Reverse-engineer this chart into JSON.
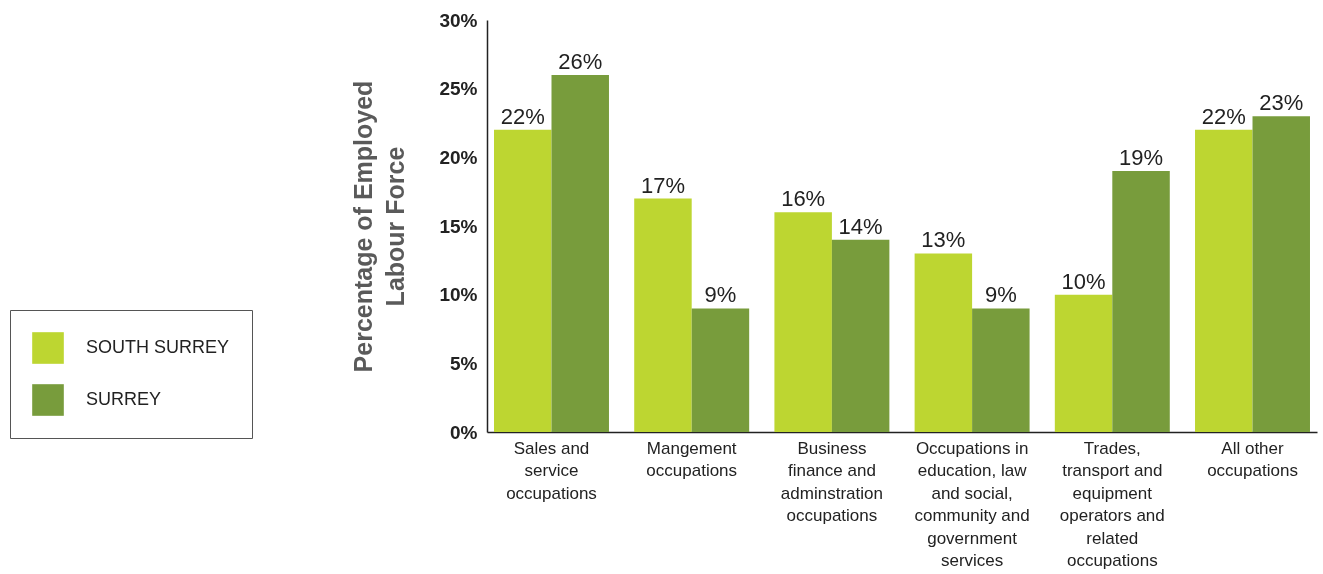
{
  "chart_data": {
    "type": "bar",
    "ylabel": "Percentage of Employed Labour Force",
    "categories": [
      "Sales and service occupations",
      "Mangement occupations",
      "Business finance and adminstration occupations",
      "Occupations in education, law and social, community and government services",
      "Trades, transport and equipment operators and related occupations",
      "All other occupations"
    ],
    "series": [
      {
        "name": "SOUTH SURREY",
        "color": "#bdd631",
        "values": [
          22,
          17,
          16,
          13,
          10,
          22
        ],
        "value_labels": [
          "22%",
          "17%",
          "16%",
          "13%",
          "10%",
          "22%"
        ]
      },
      {
        "name": "SURREY",
        "color": "#789c3c",
        "values": [
          26,
          9,
          14,
          9,
          19,
          23
        ],
        "value_labels": [
          "26%",
          "9%",
          "14%",
          "9%",
          "19%",
          "23%"
        ]
      }
    ],
    "ylim": [
      0,
      30
    ],
    "yticks": [
      {
        "value": 0,
        "label": "0%"
      },
      {
        "value": 5,
        "label": "5%"
      },
      {
        "value": 10,
        "label": "10%"
      },
      {
        "value": 15,
        "label": "15%"
      },
      {
        "value": 20,
        "label": "20%"
      },
      {
        "value": 25,
        "label": "25%"
      },
      {
        "value": 30,
        "label": "30%"
      }
    ],
    "grid": false,
    "legend": "left"
  }
}
